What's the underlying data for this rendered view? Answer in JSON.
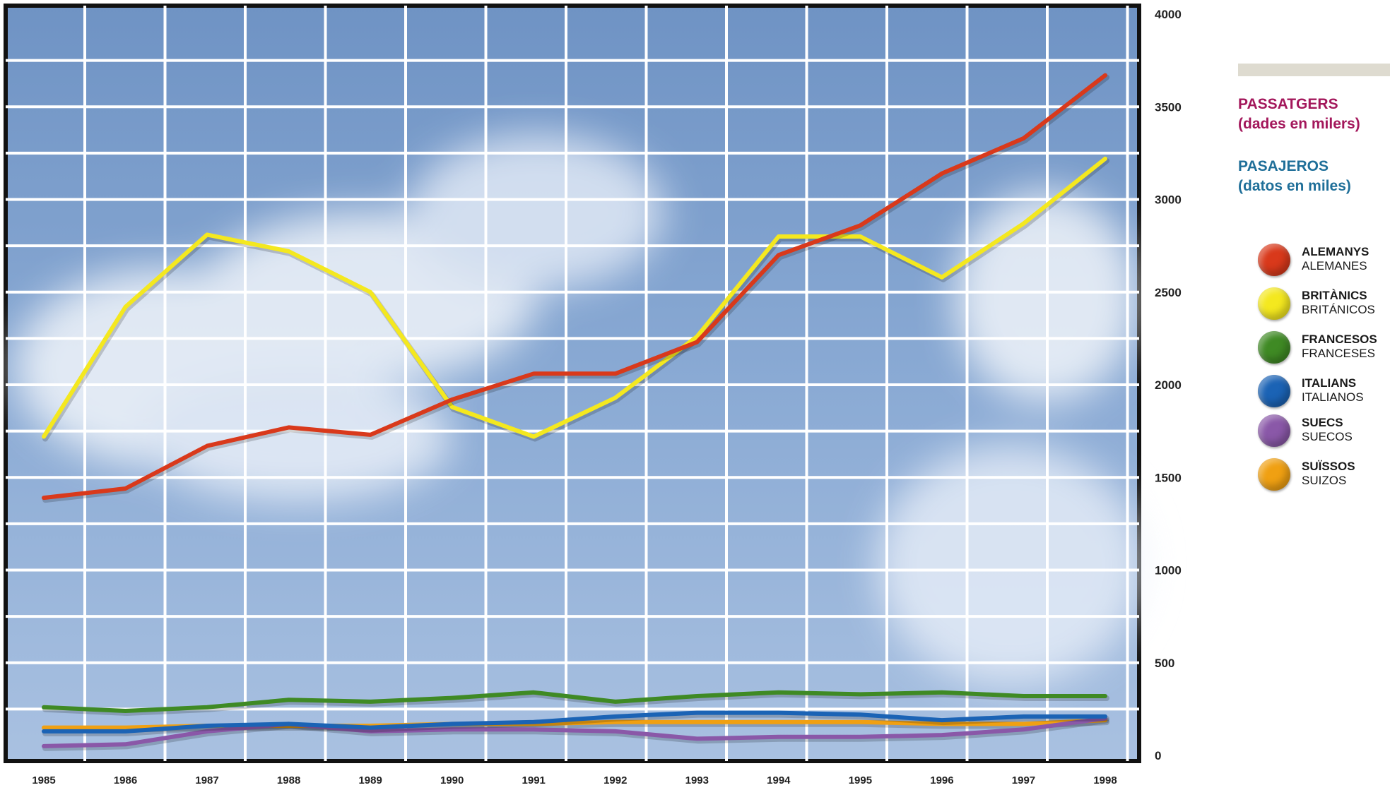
{
  "chart_data": {
    "type": "line",
    "x": [
      1985,
      1986,
      1987,
      1988,
      1989,
      1990,
      1991,
      1992,
      1993,
      1994,
      1995,
      1996,
      1997,
      1998
    ],
    "ylim": [
      0,
      4000
    ],
    "yticks": [
      0,
      500,
      1000,
      1500,
      2000,
      2500,
      3000,
      3500,
      4000
    ],
    "grid": true,
    "legend_position": "right",
    "title_ca": "PASSATGERS",
    "subtitle_ca": "(dades en milers)",
    "title_es": "PASAJEROS",
    "subtitle_es": "(datos en miles)",
    "series": [
      {
        "name": "ALEMANYS",
        "name_es": "ALEMANES",
        "color": "#d9391b",
        "values": [
          1390,
          1440,
          1670,
          1770,
          1730,
          1920,
          2060,
          2060,
          2230,
          2700,
          2860,
          3140,
          3330,
          3670
        ]
      },
      {
        "name": "BRITÀNICS",
        "name_es": "BRITÁNICOS",
        "color": "#f4e81f",
        "values": [
          1720,
          2420,
          2810,
          2720,
          2500,
          1880,
          1720,
          1930,
          2260,
          2800,
          2800,
          2580,
          2870,
          3220
        ]
      },
      {
        "name": "FRANCESOS",
        "name_es": "FRANCESES",
        "color": "#3f8a24",
        "values": [
          260,
          240,
          260,
          300,
          290,
          310,
          340,
          290,
          320,
          340,
          330,
          340,
          320,
          320
        ]
      },
      {
        "name": "ITALIANS",
        "name_es": "ITALIANOS",
        "color": "#1b63b5",
        "values": [
          130,
          130,
          160,
          170,
          150,
          170,
          180,
          210,
          230,
          230,
          220,
          190,
          210,
          210
        ]
      },
      {
        "name": "SUECS",
        "name_es": "SUECOS",
        "color": "#8a58a8",
        "values": [
          50,
          60,
          130,
          170,
          130,
          140,
          140,
          130,
          90,
          100,
          100,
          110,
          140,
          200
        ]
      },
      {
        "name": "SUÏSSOS",
        "name_es": "SUIZOS",
        "color": "#f0a012",
        "values": [
          150,
          150,
          160,
          160,
          160,
          170,
          170,
          180,
          180,
          180,
          180,
          170,
          170,
          190
        ]
      }
    ]
  }
}
